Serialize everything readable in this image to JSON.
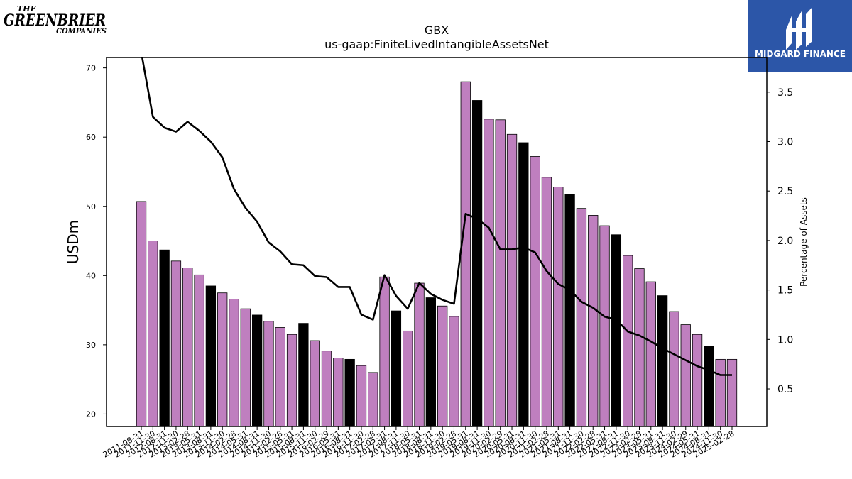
{
  "logos": {
    "left": {
      "line1": "THE",
      "line2": "GREENBRIER",
      "line3": "COMPANIES",
      "color": "#0b7a3e"
    },
    "right": {
      "text": "MIDGARD FINANCE",
      "bg": "#2c56a8"
    }
  },
  "chart_data": {
    "type": "bar",
    "title": "GBX",
    "subtitle": "us-gaap:FiniteLivedIntangibleAssetsNet",
    "ylabel": "USDm",
    "y2label": "Percentage of Assets",
    "ylim": [
      18.2,
      71.5
    ],
    "y2lim": [
      0.12,
      3.85
    ],
    "yticks": [
      20,
      30,
      40,
      50,
      60,
      70
    ],
    "y2ticks": [
      0.5,
      1.0,
      1.5,
      2.0,
      2.5,
      3.0,
      3.5
    ],
    "categories": [
      "2011-08-31",
      "2011-11-30",
      "2012-08-31",
      "2012-11-30",
      "2013-02-28",
      "2013-05-31",
      "2013-08-31",
      "2013-11-30",
      "2014-02-28",
      "2014-05-31",
      "2014-08-31",
      "2014-11-30",
      "2015-02-28",
      "2015-05-31",
      "2015-08-31",
      "2015-11-30",
      "2016-02-29",
      "2016-05-31",
      "2016-08-31",
      "2016-11-30",
      "2017-02-28",
      "2017-05-31",
      "2017-08-31",
      "2017-11-30",
      "2018-05-31",
      "2018-08-31",
      "2018-11-30",
      "2019-02-28",
      "2019-05-31",
      "2019-08-31",
      "2019-11-30",
      "2020-02-29",
      "2020-05-31",
      "2020-08-31",
      "2020-11-30",
      "2021-02-28",
      "2021-05-31",
      "2021-08-31",
      "2021-11-30",
      "2022-02-28",
      "2022-05-31",
      "2022-08-31",
      "2022-11-30",
      "2023-02-28",
      "2023-05-31",
      "2023-08-31",
      "2023-11-30",
      "2024-02-29",
      "2024-05-31",
      "2024-08-31",
      "2024-11-30",
      "2025-02-28"
    ],
    "values": [
      50.7,
      45.0,
      43.7,
      42.1,
      41.1,
      40.1,
      38.5,
      37.5,
      36.6,
      35.2,
      34.3,
      33.4,
      32.5,
      31.5,
      33.1,
      30.6,
      29.1,
      28.1,
      27.9,
      27.0,
      26.0,
      39.8,
      34.9,
      32.0,
      38.9,
      36.8,
      35.6,
      34.1,
      68.0,
      65.3,
      62.6,
      62.5,
      60.4,
      59.2,
      57.2,
      54.2,
      52.8,
      51.7,
      49.7,
      48.7,
      47.2,
      45.9,
      42.9,
      41.0,
      39.1,
      37.1,
      34.8,
      32.9,
      31.5,
      29.8,
      27.9,
      27.9
    ],
    "highlighted": [
      false,
      false,
      true,
      false,
      false,
      false,
      true,
      false,
      false,
      false,
      true,
      false,
      false,
      false,
      true,
      false,
      false,
      false,
      true,
      false,
      false,
      false,
      true,
      false,
      false,
      true,
      false,
      false,
      false,
      true,
      false,
      false,
      false,
      true,
      false,
      false,
      false,
      true,
      false,
      false,
      false,
      true,
      false,
      false,
      false,
      true,
      false,
      false,
      false,
      true,
      false,
      false
    ],
    "line_values": [
      3.9,
      3.25,
      3.14,
      3.1,
      3.2,
      3.11,
      3.0,
      2.84,
      2.52,
      2.33,
      2.19,
      1.98,
      1.89,
      1.76,
      1.75,
      1.64,
      1.63,
      1.53,
      1.53,
      1.25,
      1.2,
      1.65,
      1.44,
      1.31,
      1.57,
      1.46,
      1.4,
      1.36,
      2.27,
      2.22,
      2.13,
      1.91,
      1.91,
      1.93,
      1.88,
      1.69,
      1.56,
      1.5,
      1.38,
      1.32,
      1.23,
      1.2,
      1.08,
      1.04,
      0.98,
      0.91,
      0.85,
      0.79,
      0.73,
      0.69,
      0.64,
      0.64
    ],
    "colors": {
      "bar": "#bf7fbf",
      "highlight": "#000000",
      "line": "#000000"
    }
  }
}
